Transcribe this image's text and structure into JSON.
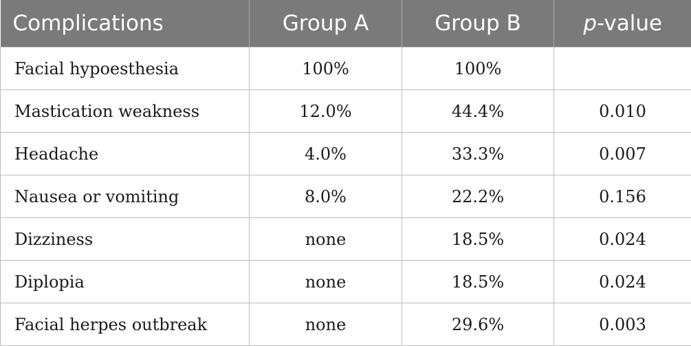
{
  "table": {
    "headers": {
      "complications": "Complications",
      "group_a": "Group A",
      "group_b": "Group B",
      "p_italic": "p",
      "p_rest": "-value"
    },
    "rows": [
      {
        "name": "Facial hypoesthesia",
        "group_a": "100%",
        "group_b": "100%",
        "p_value": ""
      },
      {
        "name": "Mastication weakness",
        "group_a": "12.0%",
        "group_b": "44.4%",
        "p_value": "0.010"
      },
      {
        "name": "Headache",
        "group_a": "4.0%",
        "group_b": "33.3%",
        "p_value": "0.007"
      },
      {
        "name": "Nausea or vomiting",
        "group_a": "8.0%",
        "group_b": "22.2%",
        "p_value": "0.156"
      },
      {
        "name": "Dizziness",
        "group_a": "none",
        "group_b": "18.5%",
        "p_value": "0.024"
      },
      {
        "name": "Diplopia",
        "group_a": "none",
        "group_b": "18.5%",
        "p_value": "0.024"
      },
      {
        "name": "Facial herpes outbreak",
        "group_a": "none",
        "group_b": "29.6%",
        "p_value": "0.003"
      }
    ]
  },
  "colors": {
    "header_bg": "#7a7a7a",
    "header_text": "#ffffff",
    "cell_border": "#bdbdbd"
  }
}
